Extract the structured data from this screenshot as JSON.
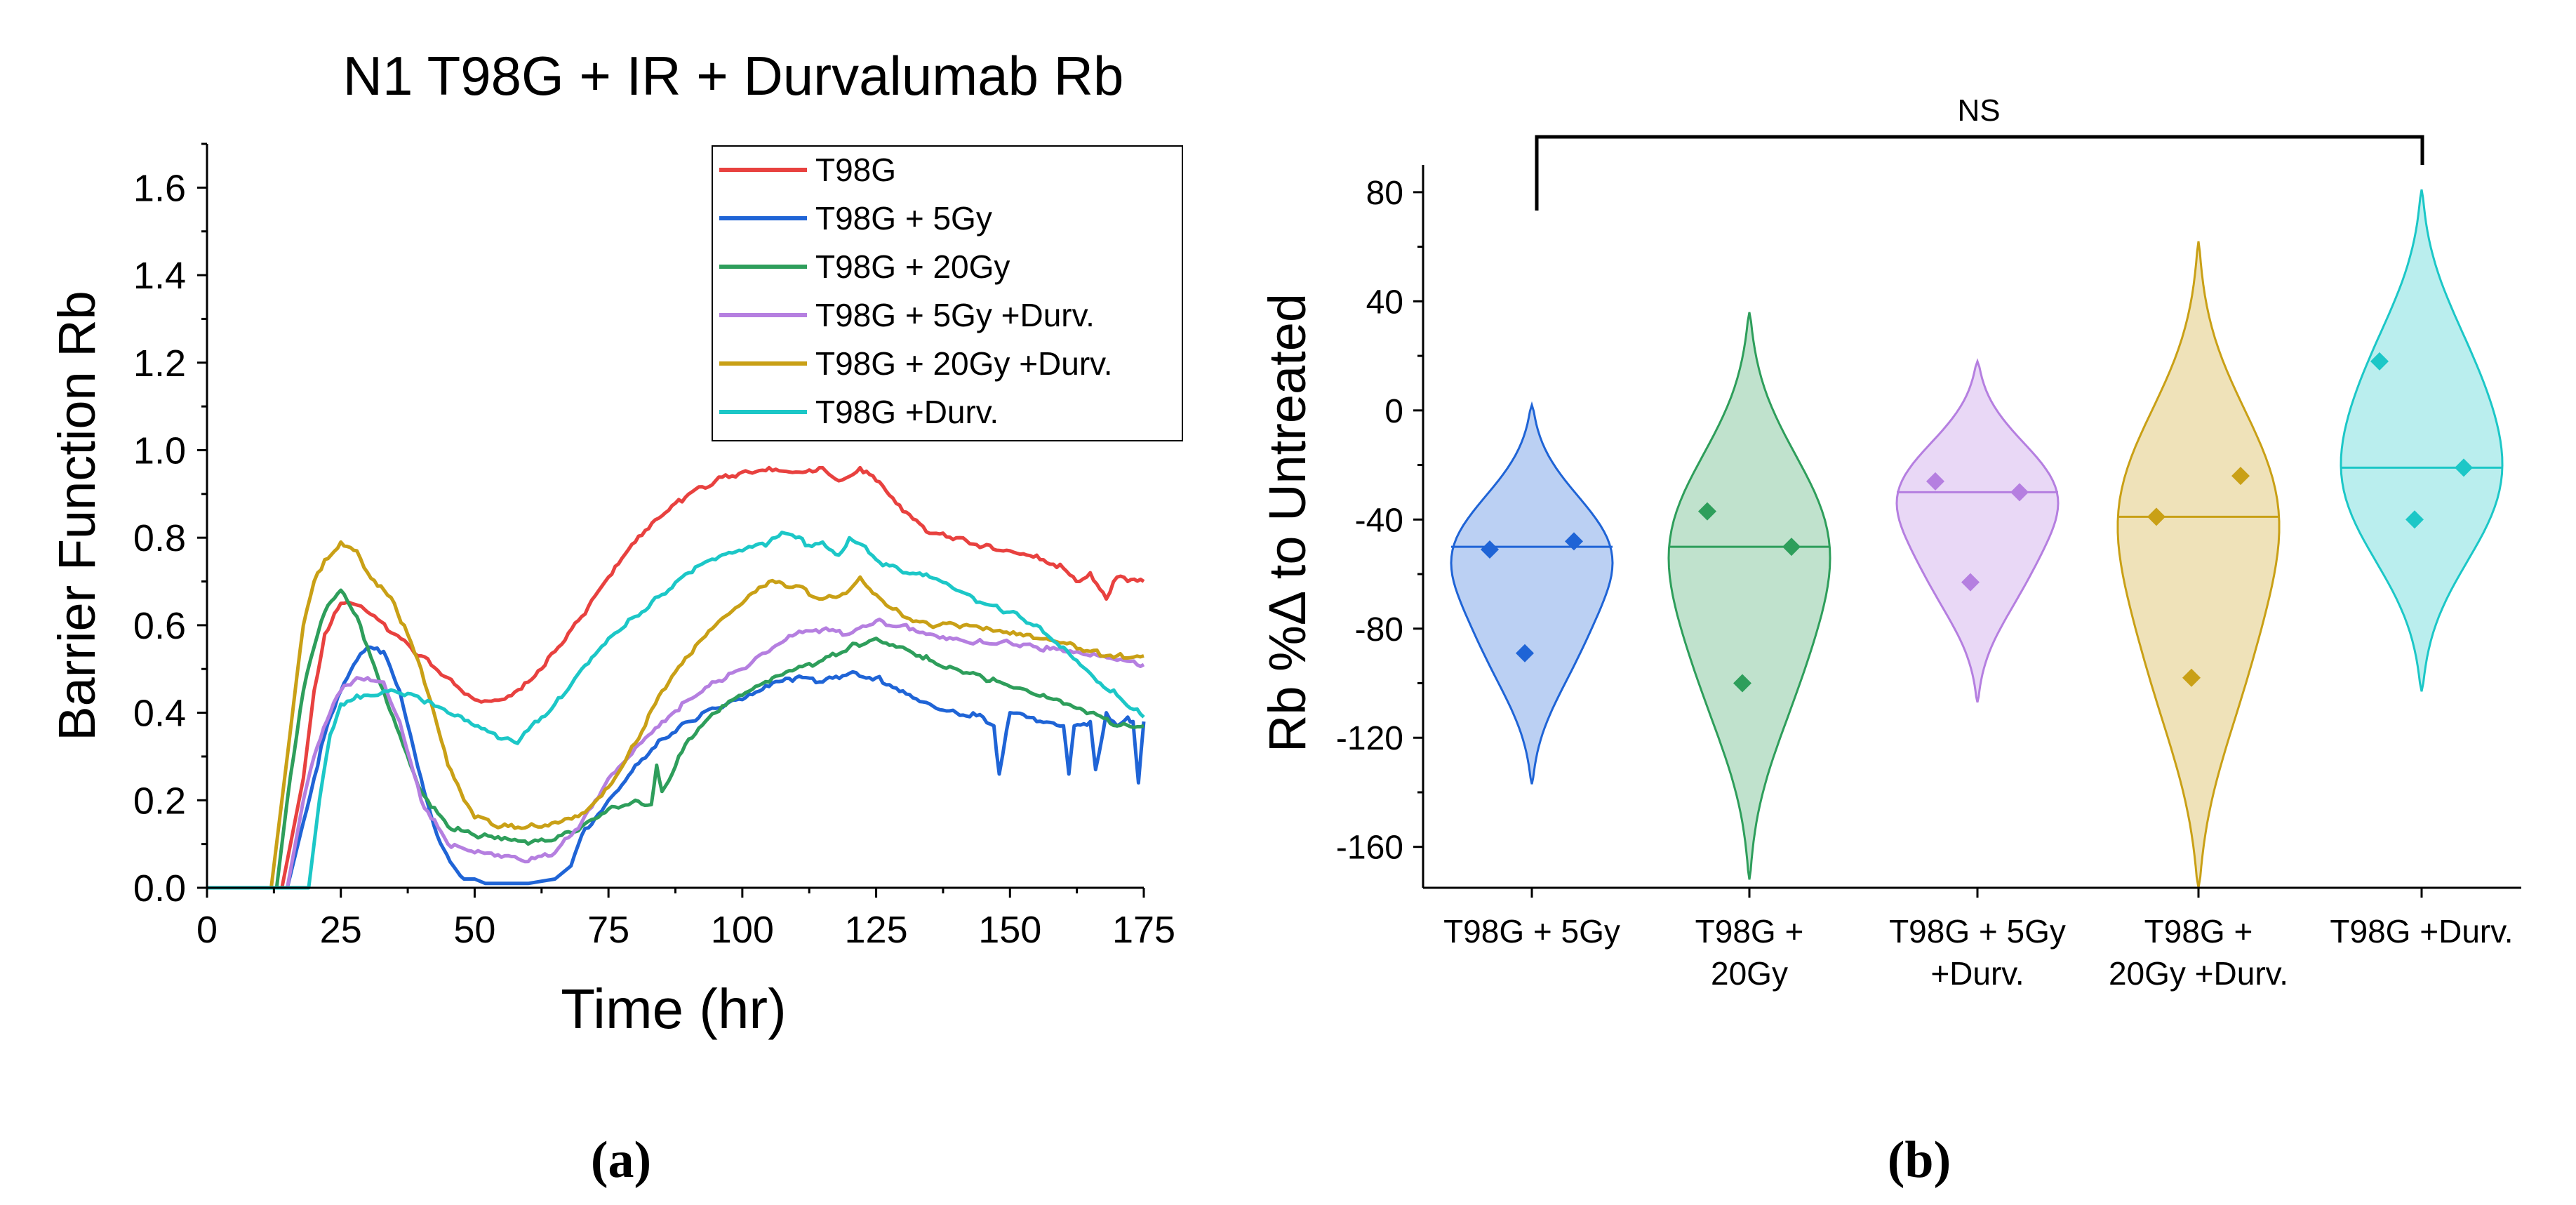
{
  "colors": {
    "T98G": "#e8413f",
    "T98G_5Gy": "#1f64d6",
    "T98G_20Gy": "#2e9e5b",
    "T98G_5Gy_Durv": "#b57fe0",
    "T98G_20Gy_Durv": "#c9a016",
    "T98G_Durv": "#1cc7c7"
  },
  "panel_labels": {
    "a": "(a)",
    "b": "(b)"
  },
  "chart_data": [
    {
      "type": "line",
      "title": "N1 T98G + IR + Durvalumab Rb",
      "xlabel": "Time (hr)",
      "ylabel": "Barrier Function Rb",
      "xlim": [
        0,
        175
      ],
      "ylim": [
        0,
        1.7
      ],
      "xticks": [
        "0",
        "25",
        "50",
        "75",
        "100",
        "125",
        "150",
        "175"
      ],
      "yticks": [
        "0.0",
        "0.2",
        "0.4",
        "0.6",
        "0.8",
        "1.0",
        "1.2",
        "1.4",
        "1.6"
      ],
      "legend_position": "top-right",
      "series": [
        {
          "name": "T98G",
          "color_key": "T98G",
          "x": [
            0,
            14,
            18,
            20,
            22,
            25,
            27,
            30,
            35,
            40,
            45,
            50,
            55,
            60,
            65,
            70,
            75,
            80,
            85,
            90,
            95,
            100,
            105,
            110,
            115,
            118,
            120,
            122,
            125,
            130,
            135,
            140,
            145,
            150,
            155,
            160,
            163,
            165,
            168,
            170,
            172,
            175
          ],
          "y": [
            0,
            0,
            0.25,
            0.45,
            0.58,
            0.65,
            0.65,
            0.63,
            0.58,
            0.53,
            0.48,
            0.43,
            0.43,
            0.47,
            0.54,
            0.62,
            0.71,
            0.79,
            0.85,
            0.9,
            0.93,
            0.95,
            0.96,
            0.95,
            0.96,
            0.93,
            0.94,
            0.96,
            0.93,
            0.86,
            0.81,
            0.8,
            0.78,
            0.77,
            0.76,
            0.73,
            0.7,
            0.72,
            0.66,
            0.71,
            0.7,
            0.7
          ]
        },
        {
          "name": "T98G + 5Gy",
          "color_key": "T98G_5Gy",
          "x": [
            0,
            15,
            18,
            20,
            22,
            25,
            28,
            30,
            33,
            36,
            40,
            43,
            46,
            48,
            50,
            52,
            55,
            60,
            65,
            68,
            70,
            75,
            80,
            85,
            90,
            95,
            100,
            105,
            110,
            115,
            120,
            125,
            130,
            135,
            140,
            145,
            147,
            148,
            150,
            155,
            160,
            161,
            162,
            165,
            166,
            168,
            170,
            172,
            173,
            174,
            175
          ],
          "y": [
            0,
            0,
            0.15,
            0.25,
            0.35,
            0.45,
            0.52,
            0.55,
            0.54,
            0.45,
            0.25,
            0.12,
            0.05,
            0.02,
            0.02,
            0.01,
            0.01,
            0.01,
            0.02,
            0.05,
            0.12,
            0.2,
            0.28,
            0.34,
            0.38,
            0.41,
            0.43,
            0.46,
            0.48,
            0.47,
            0.49,
            0.48,
            0.45,
            0.42,
            0.4,
            0.39,
            0.37,
            0.26,
            0.4,
            0.38,
            0.37,
            0.26,
            0.37,
            0.38,
            0.27,
            0.4,
            0.37,
            0.39,
            0.38,
            0.24,
            0.38
          ]
        },
        {
          "name": "T98G + 20Gy",
          "color_key": "T98G_20Gy",
          "x": [
            0,
            13,
            15,
            18,
            20,
            22,
            25,
            28,
            30,
            33,
            36,
            40,
            45,
            50,
            55,
            60,
            65,
            70,
            75,
            80,
            83,
            84,
            85,
            90,
            95,
            100,
            105,
            110,
            115,
            120,
            125,
            130,
            135,
            140,
            145,
            150,
            155,
            160,
            165,
            170,
            175
          ],
          "y": [
            0,
            0,
            0.2,
            0.45,
            0.55,
            0.63,
            0.68,
            0.62,
            0.55,
            0.45,
            0.35,
            0.22,
            0.14,
            0.12,
            0.11,
            0.1,
            0.11,
            0.14,
            0.18,
            0.2,
            0.19,
            0.28,
            0.22,
            0.34,
            0.4,
            0.44,
            0.47,
            0.5,
            0.52,
            0.55,
            0.57,
            0.55,
            0.52,
            0.5,
            0.48,
            0.46,
            0.44,
            0.42,
            0.4,
            0.37,
            0.37
          ]
        },
        {
          "name": "T98G + 5Gy +Durv.",
          "color_key": "T98G_5Gy_Durv",
          "x": [
            0,
            15,
            18,
            20,
            23,
            25,
            28,
            30,
            33,
            36,
            40,
            45,
            50,
            55,
            60,
            65,
            70,
            75,
            80,
            85,
            90,
            95,
            100,
            105,
            110,
            115,
            120,
            125,
            130,
            135,
            140,
            145,
            150,
            155,
            160,
            165,
            170,
            175
          ],
          "y": [
            0,
            0,
            0.2,
            0.3,
            0.4,
            0.45,
            0.48,
            0.48,
            0.47,
            0.38,
            0.2,
            0.1,
            0.08,
            0.07,
            0.06,
            0.08,
            0.15,
            0.25,
            0.32,
            0.38,
            0.43,
            0.47,
            0.5,
            0.54,
            0.58,
            0.59,
            0.58,
            0.61,
            0.6,
            0.58,
            0.57,
            0.56,
            0.56,
            0.55,
            0.54,
            0.53,
            0.52,
            0.51
          ]
        },
        {
          "name": "T98G + 20Gy +Durv.",
          "color_key": "T98G_20Gy_Durv",
          "x": [
            0,
            12,
            15,
            18,
            20,
            22,
            25,
            28,
            30,
            35,
            40,
            45,
            48,
            50,
            55,
            60,
            65,
            70,
            75,
            80,
            85,
            90,
            95,
            100,
            105,
            110,
            115,
            120,
            122,
            125,
            130,
            135,
            140,
            145,
            150,
            155,
            160,
            165,
            170,
            175
          ],
          "y": [
            0,
            0,
            0.3,
            0.6,
            0.7,
            0.75,
            0.79,
            0.77,
            0.72,
            0.65,
            0.5,
            0.28,
            0.2,
            0.16,
            0.14,
            0.14,
            0.15,
            0.17,
            0.23,
            0.33,
            0.45,
            0.53,
            0.6,
            0.65,
            0.7,
            0.69,
            0.66,
            0.68,
            0.71,
            0.67,
            0.62,
            0.6,
            0.6,
            0.59,
            0.58,
            0.57,
            0.56,
            0.54,
            0.53,
            0.53
          ]
        },
        {
          "name": "T98G +Durv.",
          "color_key": "T98G_Durv",
          "x": [
            0,
            19,
            21,
            23,
            25,
            28,
            30,
            35,
            40,
            45,
            50,
            55,
            58,
            60,
            65,
            70,
            75,
            80,
            85,
            90,
            95,
            100,
            105,
            108,
            110,
            113,
            115,
            118,
            120,
            123,
            125,
            130,
            135,
            140,
            145,
            150,
            155,
            160,
            165,
            170,
            175
          ],
          "y": [
            0,
            0,
            0.2,
            0.35,
            0.42,
            0.44,
            0.44,
            0.45,
            0.43,
            0.4,
            0.37,
            0.34,
            0.33,
            0.36,
            0.42,
            0.5,
            0.57,
            0.62,
            0.67,
            0.72,
            0.75,
            0.77,
            0.79,
            0.81,
            0.8,
            0.78,
            0.79,
            0.76,
            0.8,
            0.78,
            0.75,
            0.72,
            0.71,
            0.68,
            0.65,
            0.63,
            0.6,
            0.55,
            0.49,
            0.44,
            0.39
          ]
        }
      ]
    },
    {
      "type": "violin",
      "title": "",
      "xlabel": "",
      "ylabel": "Rb %Δ to Untreated",
      "ylim": [
        -175,
        90
      ],
      "yticks": [
        "80",
        "40",
        "0",
        "-40",
        "-80",
        "-120",
        "-160"
      ],
      "annotation": "NS",
      "groups": [
        {
          "label_lines": [
            "T98G + 5Gy"
          ],
          "color_key": "T98G_5Gy",
          "points": [
            -51,
            -48,
            -89
          ],
          "median": -50,
          "range": [
            -137,
            2
          ]
        },
        {
          "label_lines": [
            "T98G +",
            "20Gy"
          ],
          "color_key": "T98G_20Gy",
          "points": [
            -37,
            -50,
            -100
          ],
          "median": -50,
          "range": [
            -172,
            36
          ]
        },
        {
          "label_lines": [
            "T98G + 5Gy",
            "+Durv."
          ],
          "color_key": "T98G_5Gy_Durv",
          "points": [
            -26,
            -30,
            -63
          ],
          "median": -30,
          "range": [
            -107,
            18
          ]
        },
        {
          "label_lines": [
            "T98G +",
            "20Gy +Durv."
          ],
          "color_key": "T98G_20Gy_Durv",
          "points": [
            -39,
            -24,
            -98
          ],
          "median": -39,
          "range": [
            -175,
            62
          ]
        },
        {
          "label_lines": [
            "T98G +Durv."
          ],
          "color_key": "T98G_Durv",
          "points": [
            18,
            -21,
            -40
          ],
          "median": -21,
          "range": [
            -103,
            81
          ]
        }
      ]
    }
  ]
}
